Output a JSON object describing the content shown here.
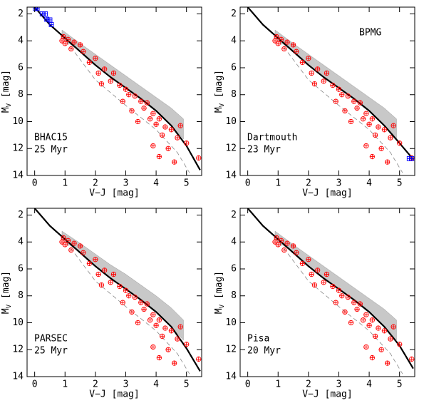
{
  "chart_data": [
    {
      "type": "scatter",
      "annotation": [
        "BHAC15",
        "25 Myr"
      ],
      "x_label": "V−J [mag]",
      "y_label": {
        "main": "M",
        "sub": "V",
        "unit": " [mag]"
      },
      "xlim": [
        -0.25,
        5.5
      ],
      "ylim": [
        14,
        1.5
      ],
      "xticks": [
        0,
        1,
        2,
        3,
        4,
        5
      ],
      "yticks": [
        2,
        4,
        6,
        8,
        10,
        12,
        14
      ],
      "band": {
        "color": "#9a9a9a",
        "x": [
          0.9,
          1.5,
          2,
          2.5,
          3,
          3.5,
          4,
          4.5,
          4.9
        ],
        "y_upper": [
          3.2,
          4.2,
          5.0,
          5.8,
          6.6,
          7.4,
          8.2,
          9.0,
          9.8
        ],
        "y_lower": [
          3.8,
          4.8,
          5.8,
          6.7,
          7.5,
          8.3,
          9.2,
          10.3,
          11.3
        ]
      },
      "model": {
        "color": "#000000",
        "x": [
          0,
          0.5,
          1,
          1.5,
          2,
          2.5,
          3,
          3.5,
          4,
          4.5,
          5,
          5.45
        ],
        "y": [
          1.5,
          2.8,
          3.8,
          4.8,
          5.8,
          6.7,
          7.5,
          8.3,
          9.2,
          10.3,
          11.8,
          13.6
        ]
      },
      "binary": {
        "color": "#888888",
        "x": [
          0.9,
          2,
          3,
          4,
          4.7,
          5.1
        ],
        "y": [
          3.6,
          6.9,
          8.8,
          10.6,
          12.3,
          13.8
        ]
      },
      "stars": {
        "color": "#ff0000",
        "x": [
          0.9,
          1.0,
          1.1,
          1.2,
          1.5,
          1.6,
          1.8,
          2.0,
          2.1,
          2.3,
          2.5,
          2.6,
          2.8,
          2.9,
          3.0,
          3.1,
          3.2,
          3.3,
          3.4,
          3.5,
          3.6,
          3.7,
          3.8,
          3.9,
          4.0,
          4.1,
          4.2,
          4.3,
          4.4,
          4.5,
          4.6,
          4.7,
          4.8,
          5.0,
          5.4,
          3.9,
          4.1,
          0.95,
          1.3,
          2.2
        ],
        "y": [
          4.0,
          4.2,
          3.9,
          4.6,
          4.3,
          4.8,
          5.6,
          5.3,
          6.4,
          6.1,
          7.0,
          6.4,
          7.3,
          8.5,
          7.6,
          8.0,
          9.2,
          8.1,
          10.0,
          8.5,
          9.0,
          8.6,
          9.8,
          9.4,
          10.2,
          9.8,
          11.0,
          10.4,
          12.0,
          10.6,
          13.0,
          11.2,
          10.3,
          11.6,
          12.7,
          11.8,
          12.6,
          3.7,
          4.1,
          7.2
        ]
      },
      "extra": {
        "color": "#0000ff",
        "x": [
          0.03,
          0.08,
          0.25,
          0.35,
          0.4,
          0.5,
          0.55
        ],
        "y": [
          1.6,
          1.6,
          2.0,
          2.0,
          2.4,
          2.45,
          2.8
        ]
      }
    },
    {
      "type": "scatter",
      "annotation": [
        "Dartmouth",
        "23 Myr"
      ],
      "label": "BPMG",
      "x_label": "V−J [mag]",
      "y_label": {
        "main": "M",
        "sub": "V",
        "unit": " [mag]"
      },
      "xlim": [
        -0.25,
        5.5
      ],
      "ylim": [
        14,
        1.5
      ],
      "xticks": [
        0,
        1,
        2,
        3,
        4,
        5
      ],
      "yticks": [
        2,
        4,
        6,
        8,
        10,
        12,
        14
      ],
      "band": {
        "color": "#9a9a9a",
        "x": [
          0.9,
          1.5,
          2,
          2.5,
          3,
          3.5,
          4,
          4.5,
          4.9
        ],
        "y_upper": [
          3.2,
          4.2,
          5.0,
          5.8,
          6.6,
          7.4,
          8.2,
          9.0,
          9.8
        ],
        "y_lower": [
          3.8,
          4.8,
          5.8,
          6.7,
          7.5,
          8.3,
          9.2,
          10.3,
          11.3
        ]
      },
      "model": {
        "color": "#000000",
        "x": [
          0,
          0.5,
          1,
          1.5,
          2,
          2.5,
          3,
          3.5,
          4,
          4.5,
          5,
          5.45
        ],
        "y": [
          1.5,
          2.8,
          3.8,
          4.8,
          5.8,
          6.7,
          7.5,
          8.3,
          9.2,
          10.3,
          11.6,
          12.8
        ]
      },
      "binary": {
        "color": "#888888",
        "x": [
          0.9,
          2,
          3,
          4,
          4.7,
          5.1
        ],
        "y": [
          3.6,
          6.9,
          8.8,
          10.6,
          12.3,
          13.8
        ]
      },
      "stars": {
        "color": "#ff0000",
        "x": [
          0.9,
          1.0,
          1.1,
          1.2,
          1.5,
          1.6,
          1.8,
          2.0,
          2.1,
          2.3,
          2.5,
          2.6,
          2.8,
          2.9,
          3.0,
          3.1,
          3.2,
          3.3,
          3.4,
          3.5,
          3.6,
          3.7,
          3.8,
          3.9,
          4.0,
          4.1,
          4.2,
          4.3,
          4.4,
          4.5,
          4.6,
          4.7,
          4.8,
          5.0,
          5.4,
          3.9,
          4.1,
          0.95,
          1.3,
          2.2
        ],
        "y": [
          4.0,
          4.2,
          3.9,
          4.6,
          4.3,
          4.8,
          5.6,
          5.3,
          6.4,
          6.1,
          7.0,
          6.4,
          7.3,
          8.5,
          7.6,
          8.0,
          9.2,
          8.1,
          10.0,
          8.5,
          9.0,
          8.6,
          9.8,
          9.4,
          10.2,
          9.8,
          11.0,
          10.4,
          12.0,
          10.6,
          13.0,
          11.2,
          10.3,
          11.6,
          12.7,
          11.8,
          12.6,
          3.7,
          4.1,
          7.2
        ]
      },
      "extra": {
        "color": "#0000ff",
        "x": [
          5.32,
          5.4
        ],
        "y": [
          12.75,
          12.75
        ]
      }
    },
    {
      "type": "scatter",
      "annotation": [
        "PARSEC",
        "25 Myr"
      ],
      "x_label": "V−J [mag]",
      "y_label": {
        "main": "M",
        "sub": "V",
        "unit": " [mag]"
      },
      "xlim": [
        -0.25,
        5.5
      ],
      "ylim": [
        14,
        1.5
      ],
      "xticks": [
        0,
        1,
        2,
        3,
        4,
        5
      ],
      "yticks": [
        2,
        4,
        6,
        8,
        10,
        12,
        14
      ],
      "band": {
        "color": "#9a9a9a",
        "x": [
          0.9,
          1.5,
          2,
          2.5,
          3,
          3.5,
          4,
          4.5,
          4.9
        ],
        "y_upper": [
          3.2,
          4.1,
          4.9,
          5.7,
          6.4,
          7.2,
          8.0,
          8.9,
          9.8
        ],
        "y_lower": [
          3.8,
          4.8,
          5.8,
          6.7,
          7.5,
          8.3,
          9.2,
          10.3,
          11.3
        ]
      },
      "model": {
        "color": "#000000",
        "x": [
          0,
          0.5,
          1,
          1.5,
          2,
          2.5,
          3,
          3.5,
          4,
          4.5,
          5,
          5.45
        ],
        "y": [
          1.5,
          2.8,
          3.8,
          4.8,
          5.8,
          6.7,
          7.5,
          8.3,
          9.2,
          10.3,
          11.9,
          13.6
        ]
      },
      "binary": {
        "color": "#888888",
        "x": [
          0.9,
          2,
          3,
          4,
          4.7,
          5.1
        ],
        "y": [
          3.6,
          6.9,
          8.8,
          10.6,
          12.3,
          13.8
        ]
      },
      "stars": {
        "color": "#ff0000",
        "x": [
          0.9,
          1.0,
          1.1,
          1.2,
          1.5,
          1.6,
          1.8,
          2.0,
          2.1,
          2.3,
          2.5,
          2.6,
          2.8,
          2.9,
          3.0,
          3.1,
          3.2,
          3.3,
          3.4,
          3.5,
          3.6,
          3.7,
          3.8,
          3.9,
          4.0,
          4.1,
          4.2,
          4.3,
          4.4,
          4.5,
          4.6,
          4.7,
          4.8,
          5.0,
          5.4,
          3.9,
          4.1,
          0.95,
          1.3,
          2.2
        ],
        "y": [
          4.0,
          4.2,
          3.9,
          4.6,
          4.3,
          4.8,
          5.6,
          5.3,
          6.4,
          6.1,
          7.0,
          6.4,
          7.3,
          8.5,
          7.6,
          8.0,
          9.2,
          8.1,
          10.0,
          8.5,
          9.0,
          8.6,
          9.8,
          9.4,
          10.2,
          9.8,
          11.0,
          10.4,
          12.0,
          10.6,
          13.0,
          11.2,
          10.3,
          11.6,
          12.7,
          11.8,
          12.6,
          3.7,
          4.1,
          7.2
        ]
      }
    },
    {
      "type": "scatter",
      "annotation": [
        "Pisa",
        "20 Myr"
      ],
      "x_label": "V−J [mag]",
      "y_label": {
        "main": "M",
        "sub": "V",
        "unit": " [mag]"
      },
      "xlim": [
        -0.25,
        5.5
      ],
      "ylim": [
        14,
        1.5
      ],
      "xticks": [
        0,
        1,
        2,
        3,
        4,
        5
      ],
      "yticks": [
        2,
        4,
        6,
        8,
        10,
        12,
        14
      ],
      "band": {
        "color": "#9a9a9a",
        "x": [
          0.9,
          1.5,
          2,
          2.5,
          3,
          3.5,
          4,
          4.5,
          4.9
        ],
        "y_upper": [
          3.2,
          4.2,
          5.0,
          5.8,
          6.6,
          7.4,
          8.2,
          9.0,
          9.8
        ],
        "y_lower": [
          3.8,
          4.8,
          5.8,
          6.7,
          7.5,
          8.3,
          9.2,
          10.3,
          11.3
        ]
      },
      "model": {
        "color": "#000000",
        "x": [
          0,
          0.5,
          1,
          1.5,
          2,
          2.5,
          3,
          3.5,
          4,
          4.5,
          5,
          5.45
        ],
        "y": [
          1.5,
          2.8,
          3.8,
          4.8,
          5.8,
          6.7,
          7.5,
          8.3,
          9.2,
          10.3,
          11.7,
          13.4
        ]
      },
      "binary": {
        "color": "#888888",
        "x": [
          0.9,
          2,
          3,
          4,
          4.7,
          5.1
        ],
        "y": [
          3.6,
          6.9,
          8.8,
          10.6,
          12.3,
          13.8
        ]
      },
      "stars": {
        "color": "#ff0000",
        "x": [
          0.9,
          1.0,
          1.1,
          1.2,
          1.5,
          1.6,
          1.8,
          2.0,
          2.1,
          2.3,
          2.5,
          2.6,
          2.8,
          2.9,
          3.0,
          3.1,
          3.2,
          3.3,
          3.4,
          3.5,
          3.6,
          3.7,
          3.8,
          3.9,
          4.0,
          4.1,
          4.2,
          4.3,
          4.4,
          4.5,
          4.6,
          4.7,
          4.8,
          5.0,
          5.4,
          3.9,
          4.1,
          0.95,
          1.3,
          2.2
        ],
        "y": [
          4.0,
          4.2,
          3.9,
          4.6,
          4.3,
          4.8,
          5.6,
          5.3,
          6.4,
          6.1,
          7.0,
          6.4,
          7.3,
          8.5,
          7.6,
          8.0,
          9.2,
          8.1,
          10.0,
          8.5,
          9.0,
          8.6,
          9.8,
          9.4,
          10.2,
          9.8,
          11.0,
          10.4,
          12.0,
          10.6,
          13.0,
          11.2,
          10.3,
          11.6,
          12.7,
          11.8,
          12.6,
          3.7,
          4.1,
          7.2
        ]
      }
    }
  ]
}
